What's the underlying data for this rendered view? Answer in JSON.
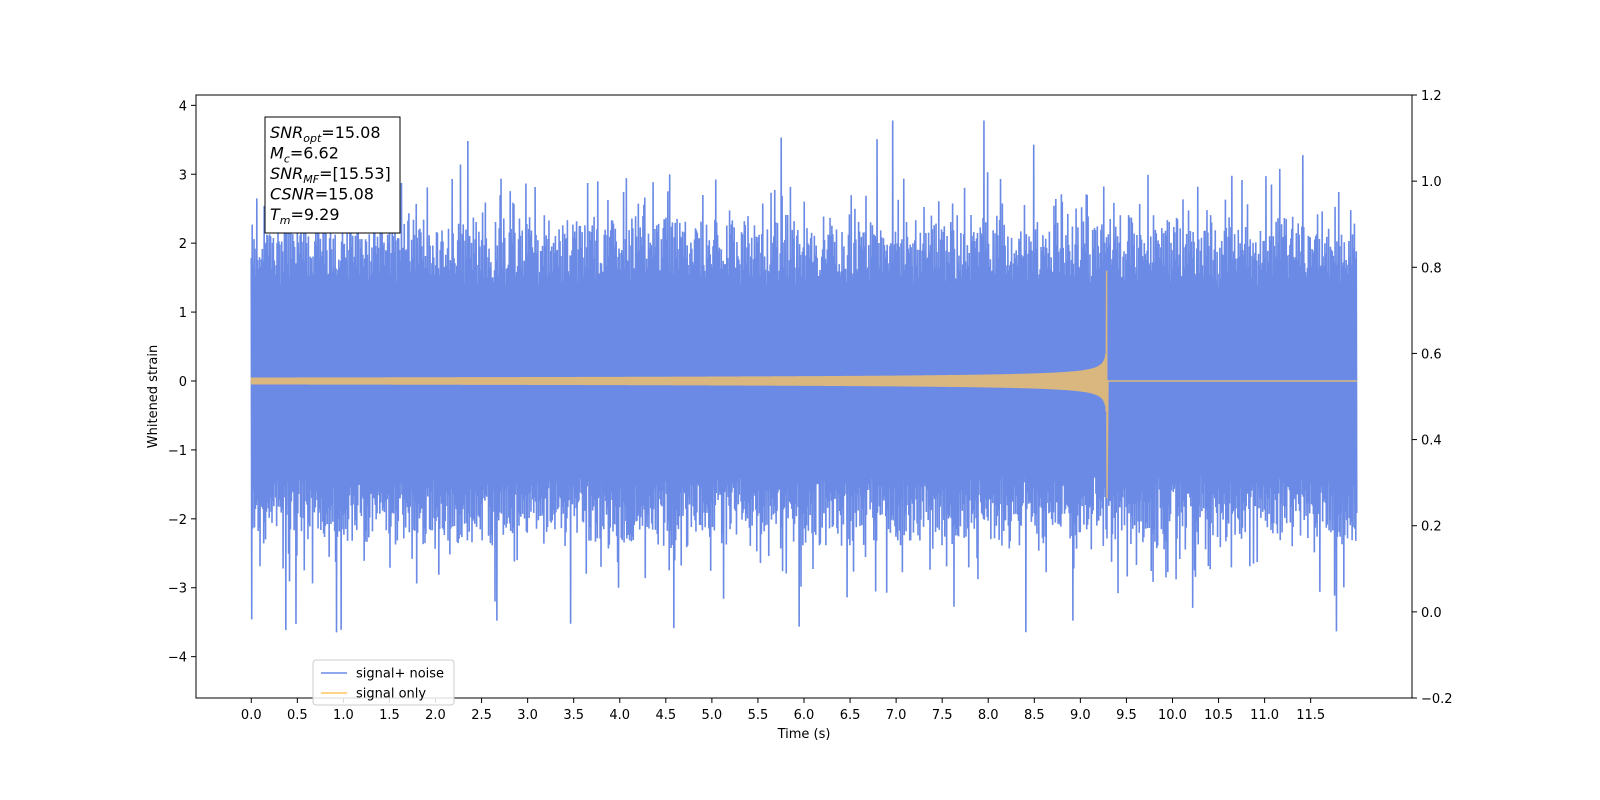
{
  "chart_data": {
    "type": "line",
    "xlabel": "Time (s)",
    "ylabel": "Whitened strain",
    "xlim": [
      -0.6,
      12.6
    ],
    "ylim": [
      -4.6,
      4.15
    ],
    "y2lim": [
      -0.2,
      1.2
    ],
    "xticks": [
      0.0,
      0.5,
      1.0,
      1.5,
      2.0,
      2.5,
      3.0,
      3.5,
      4.0,
      4.5,
      5.0,
      5.5,
      6.0,
      6.5,
      7.0,
      7.5,
      8.0,
      8.5,
      9.0,
      9.5,
      10.0,
      10.5,
      11.0,
      11.5
    ],
    "xtick_labels": [
      "0.0",
      "0.5",
      "1.0",
      "1.5",
      "2.0",
      "2.5",
      "3.0",
      "3.5",
      "4.0",
      "4.5",
      "5.0",
      "5.5",
      "6.0",
      "6.5",
      "7.0",
      "7.5",
      "8.0",
      "8.5",
      "9.0",
      "9.5",
      "10.0",
      "10.5",
      "11.0",
      "11.5"
    ],
    "yticks": [
      -4,
      -3,
      -2,
      -1,
      0,
      1,
      2,
      3,
      4
    ],
    "ytick_labels": [
      "−4",
      "−3",
      "−2",
      "−1",
      "0",
      "1",
      "2",
      "3",
      "4"
    ],
    "y2ticks": [
      -0.2,
      0.0,
      0.2,
      0.4,
      0.6,
      0.8,
      1.0,
      1.2
    ],
    "y2tick_labels": [
      "−0.2",
      "0.0",
      "0.2",
      "0.4",
      "0.6",
      "0.8",
      "1.0",
      "1.2"
    ],
    "x_range": [
      0.0,
      12.0
    ],
    "merger_time": 9.29,
    "grid": false,
    "legend_position": "lower-left",
    "series": [
      {
        "name": "signal+ noise",
        "color": "#6a8ae5",
        "envelope": {
          "noise_peak_min": 1.5,
          "noise_peak_max": 3.8,
          "trough_min": -4.2,
          "max_value": 3.78,
          "min_value": -4.2
        }
      },
      {
        "name": "signal only",
        "color": "#ffc55c",
        "amplitude_at_start": 0.05,
        "peak_amplitude": 1.6,
        "min_value": -1.7,
        "peak_time": 9.29,
        "after_merger_value": 0.0
      }
    ],
    "annotation_lines": [
      {
        "base": "SNR",
        "sub": "opt",
        "value": "=15.08"
      },
      {
        "base": "M",
        "sub": "c",
        "value": "=6.62"
      },
      {
        "base": "SNR",
        "sub": "MF",
        "value": "=[15.53]"
      },
      {
        "base": "CSNR",
        "sub": "",
        "value": "=15.08"
      },
      {
        "base": "T",
        "sub": "m",
        "value": "=9.29"
      }
    ]
  }
}
